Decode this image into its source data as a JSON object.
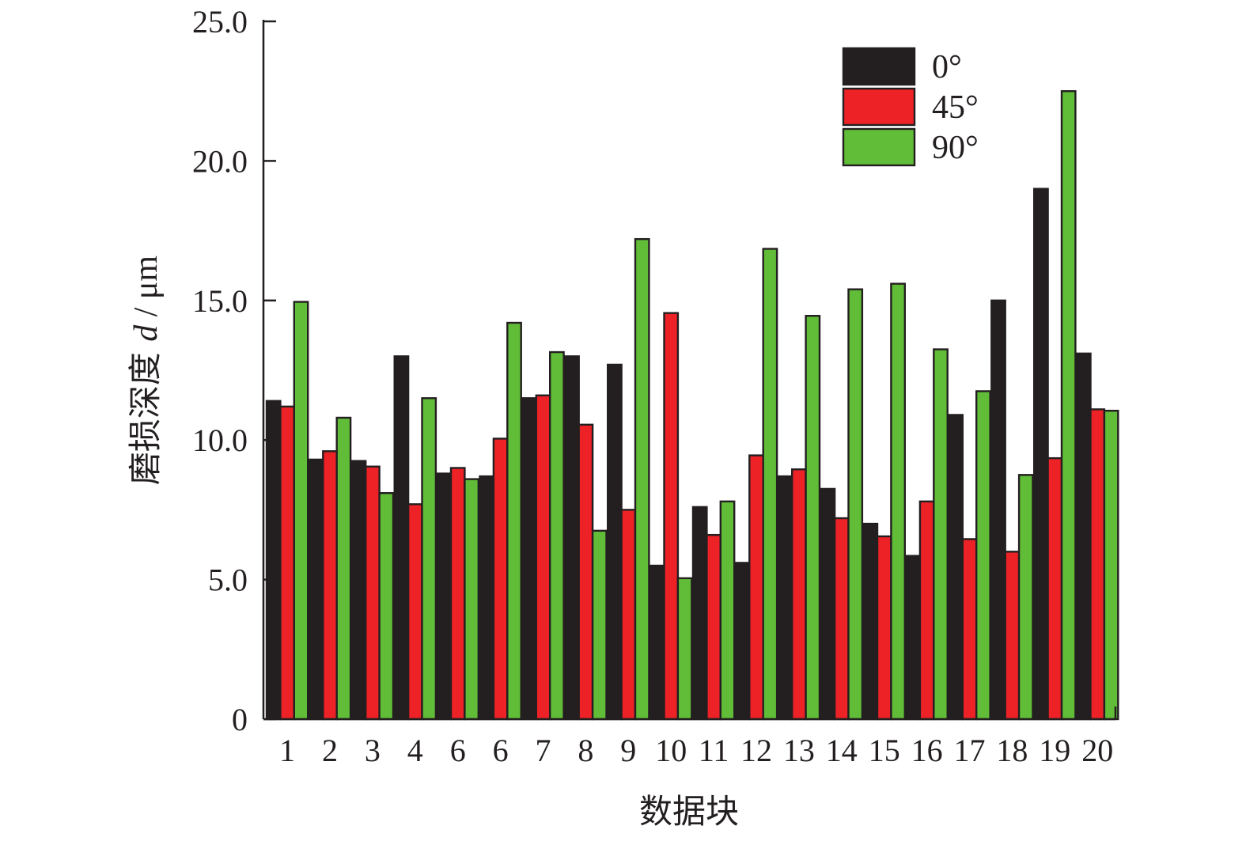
{
  "colors": {
    "axis": "#231f20",
    "bar_stroke": "#231f20",
    "series_0": "#231f20",
    "series_45": "#ed2227",
    "series_90": "#61bd38"
  },
  "chart_data": {
    "type": "bar",
    "title": "",
    "xlabel": "数据块",
    "ylabel_prefix": "磨损深度 ",
    "ylabel_var": "d",
    "ylabel_unit": " / μm",
    "ylim": [
      0,
      25
    ],
    "yticks": [
      "0",
      "5.0",
      "10.0",
      "15.0",
      "20.0",
      "25.0"
    ],
    "ytick_values": [
      0,
      5,
      10,
      15,
      20,
      25
    ],
    "categories": [
      "1",
      "2",
      "3",
      "4",
      "6",
      "6",
      "7",
      "8",
      "9",
      "10",
      "11",
      "12",
      "13",
      "14",
      "15",
      "16",
      "17",
      "18",
      "19",
      "20"
    ],
    "legend_position": "top-right",
    "grid": false,
    "series": [
      {
        "name": "0°",
        "values": [
          11.4,
          9.3,
          9.25,
          13.0,
          8.8,
          8.7,
          11.5,
          13.0,
          12.7,
          5.5,
          7.6,
          5.6,
          8.7,
          8.25,
          7.0,
          5.85,
          10.9,
          15.0,
          19.0,
          13.1
        ]
      },
      {
        "name": "45°",
        "values": [
          11.2,
          9.6,
          9.05,
          7.7,
          9.0,
          10.05,
          11.6,
          10.55,
          7.5,
          14.55,
          6.6,
          9.45,
          8.95,
          7.2,
          6.55,
          7.8,
          6.45,
          6.0,
          9.35,
          11.1
        ]
      },
      {
        "name": "90°",
        "values": [
          14.95,
          10.8,
          8.1,
          11.5,
          8.6,
          14.2,
          13.15,
          6.75,
          17.2,
          5.05,
          7.8,
          16.85,
          14.45,
          15.4,
          15.6,
          13.25,
          11.75,
          8.75,
          22.5,
          11.05
        ]
      }
    ]
  }
}
